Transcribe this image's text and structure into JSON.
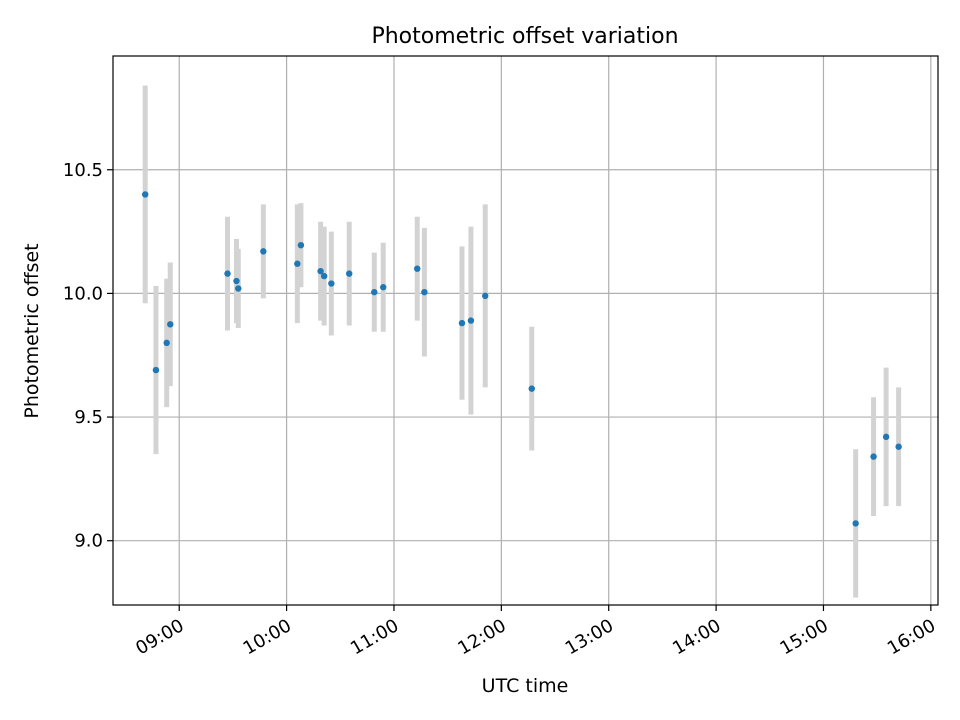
{
  "chart_data": {
    "type": "scatter",
    "title": "Photometric offset variation",
    "xlabel": "UTC time",
    "ylabel": "Photometric offset",
    "x_ticks": [
      "09:00",
      "10:00",
      "11:00",
      "12:00",
      "13:00",
      "14:00",
      "15:00",
      "16:00"
    ],
    "y_ticks": [
      "9.0",
      "9.5",
      "10.0",
      "10.5"
    ],
    "xlim": [
      "08:23",
      "16:04"
    ],
    "ylim": [
      8.74,
      10.96
    ],
    "grid": true,
    "marker_color": "#1f77b4",
    "errorbar_color": "#d3d3d3",
    "points": [
      {
        "x": "08:41",
        "y": 10.4,
        "err": 0.44
      },
      {
        "x": "08:47",
        "y": 9.69,
        "err": 0.34
      },
      {
        "x": "08:53",
        "y": 9.8,
        "err": 0.26
      },
      {
        "x": "08:55",
        "y": 9.875,
        "err": 0.25
      },
      {
        "x": "09:27",
        "y": 10.08,
        "err": 0.23
      },
      {
        "x": "09:32",
        "y": 10.05,
        "err": 0.17
      },
      {
        "x": "09:33",
        "y": 10.02,
        "err": 0.16
      },
      {
        "x": "09:47",
        "y": 10.17,
        "err": 0.19
      },
      {
        "x": "10:06",
        "y": 10.12,
        "err": 0.24
      },
      {
        "x": "10:08",
        "y": 10.195,
        "err": 0.17
      },
      {
        "x": "10:19",
        "y": 10.09,
        "err": 0.2
      },
      {
        "x": "10:21",
        "y": 10.07,
        "err": 0.2
      },
      {
        "x": "10:25",
        "y": 10.04,
        "err": 0.21
      },
      {
        "x": "10:35",
        "y": 10.08,
        "err": 0.21
      },
      {
        "x": "10:49",
        "y": 10.005,
        "err": 0.16
      },
      {
        "x": "10:54",
        "y": 10.025,
        "err": 0.18
      },
      {
        "x": "11:13",
        "y": 10.1,
        "err": 0.21
      },
      {
        "x": "11:17",
        "y": 10.005,
        "err": 0.26
      },
      {
        "x": "11:38",
        "y": 9.88,
        "err": 0.31
      },
      {
        "x": "11:43",
        "y": 9.89,
        "err": 0.38
      },
      {
        "x": "11:51",
        "y": 9.99,
        "err": 0.37
      },
      {
        "x": "12:17",
        "y": 9.615,
        "err": 0.25
      },
      {
        "x": "15:18",
        "y": 9.07,
        "err": 0.3
      },
      {
        "x": "15:28",
        "y": 9.34,
        "err": 0.24
      },
      {
        "x": "15:35",
        "y": 9.42,
        "err": 0.28
      },
      {
        "x": "15:42",
        "y": 9.38,
        "err": 0.24
      }
    ]
  }
}
